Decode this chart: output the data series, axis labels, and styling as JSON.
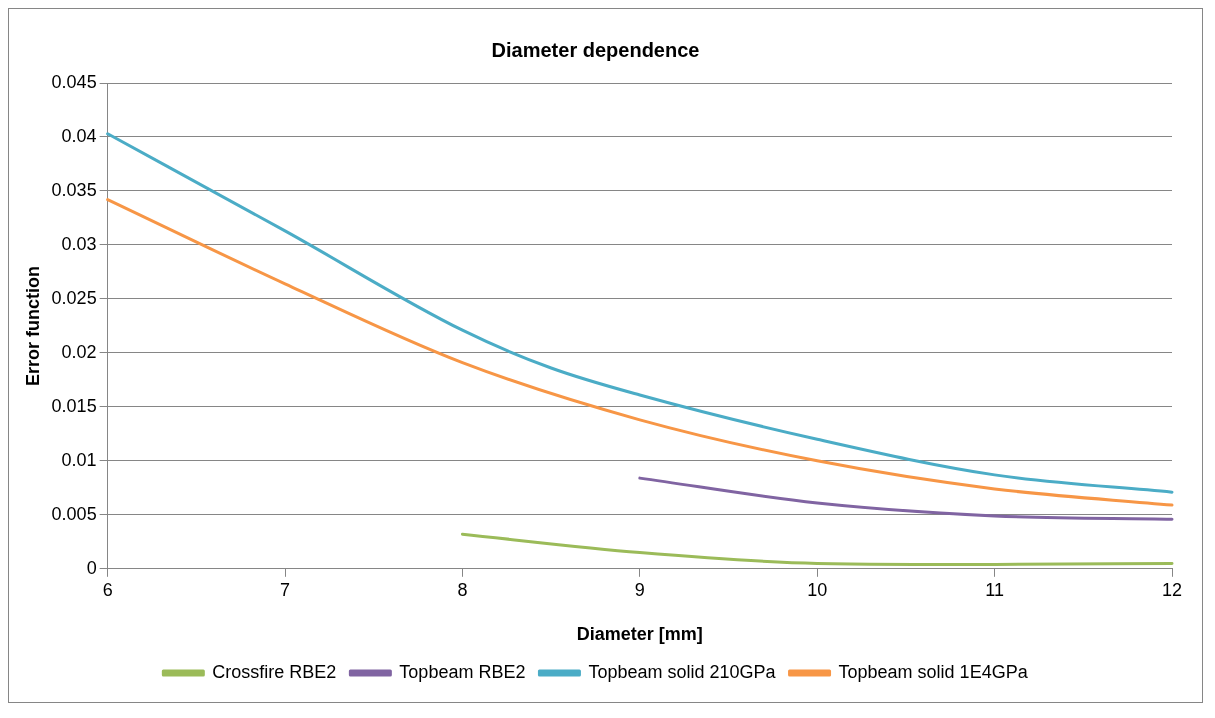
{
  "chart_data": {
    "type": "line",
    "title": "Diameter dependence",
    "xlabel": "Diameter [mm]",
    "ylabel": "Error function",
    "xlim": [
      6,
      12
    ],
    "xticks": [
      6,
      7,
      8,
      9,
      10,
      11,
      12
    ],
    "ylim": [
      0,
      0.045
    ],
    "yticks": [
      0,
      0.005,
      0.01,
      0.015,
      0.02,
      0.025,
      0.03,
      0.035,
      0.04,
      0.045
    ],
    "grid": "y",
    "legend": "bottom",
    "marker": "none",
    "line_style": "solid",
    "series": [
      {
        "name": "Crossfire RBE2",
        "color": "#9bbb59",
        "x": [
          8,
          9,
          10,
          11,
          12
        ],
        "values": [
          0.0032,
          0.0015,
          0.0005,
          0.0004,
          0.0005
        ]
      },
      {
        "name": "Topbeam RBE2",
        "color": "#8064a2",
        "x": [
          9,
          10,
          11,
          12
        ],
        "values": [
          0.0084,
          0.0061,
          0.0049,
          0.0046
        ]
      },
      {
        "name": "Topbeam solid 210GPa",
        "color": "#4bacc6",
        "x": [
          6,
          7,
          8,
          8.5,
          9,
          10,
          11,
          12
        ],
        "values": [
          0.0403,
          0.0313,
          0.0221,
          0.0186,
          0.0161,
          0.012,
          0.0087,
          0.0071
        ]
      },
      {
        "name": "Topbeam solid 1E4GPa",
        "color": "#f79646",
        "x": [
          6,
          7,
          8,
          9,
          10,
          11,
          12
        ],
        "values": [
          0.0342,
          0.0264,
          0.0191,
          0.0138,
          0.01,
          0.0074,
          0.0059
        ]
      }
    ]
  }
}
